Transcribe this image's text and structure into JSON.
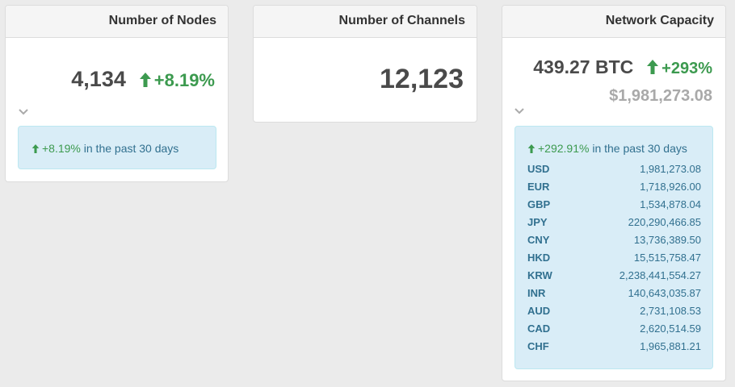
{
  "nodes": {
    "title": "Number of Nodes",
    "value": "4,134",
    "change": "+8.19%",
    "summary_change": "+8.19%",
    "summary_text": "in the past 30 days"
  },
  "channels": {
    "title": "Number of Channels",
    "value": "12,123"
  },
  "capacity": {
    "title": "Network Capacity",
    "value": "439.27 BTC",
    "change": "+293%",
    "usd_value": "$1,981,273.08",
    "summary_change": "+292.91%",
    "summary_text": "in the past 30 days",
    "rates": [
      {
        "code": "USD",
        "value": "1,981,273.08"
      },
      {
        "code": "EUR",
        "value": "1,718,926.00"
      },
      {
        "code": "GBP",
        "value": "1,534,878.04"
      },
      {
        "code": "JPY",
        "value": "220,290,466.85"
      },
      {
        "code": "CNY",
        "value": "13,736,389.50"
      },
      {
        "code": "HKD",
        "value": "15,515,758.47"
      },
      {
        "code": "KRW",
        "value": "2,238,441,554.27"
      },
      {
        "code": "INR",
        "value": "140,643,035.87"
      },
      {
        "code": "AUD",
        "value": "2,731,108.53"
      },
      {
        "code": "CAD",
        "value": "2,620,514.59"
      },
      {
        "code": "CHF",
        "value": "1,965,881.21"
      }
    ]
  },
  "icons": {
    "up": "arrow-up-icon",
    "chevron": "chevron-down-icon"
  },
  "colors": {
    "positive": "#3c9a4f",
    "info_bg": "#d9edf7",
    "info_text": "#31708f",
    "muted": "#999999"
  }
}
